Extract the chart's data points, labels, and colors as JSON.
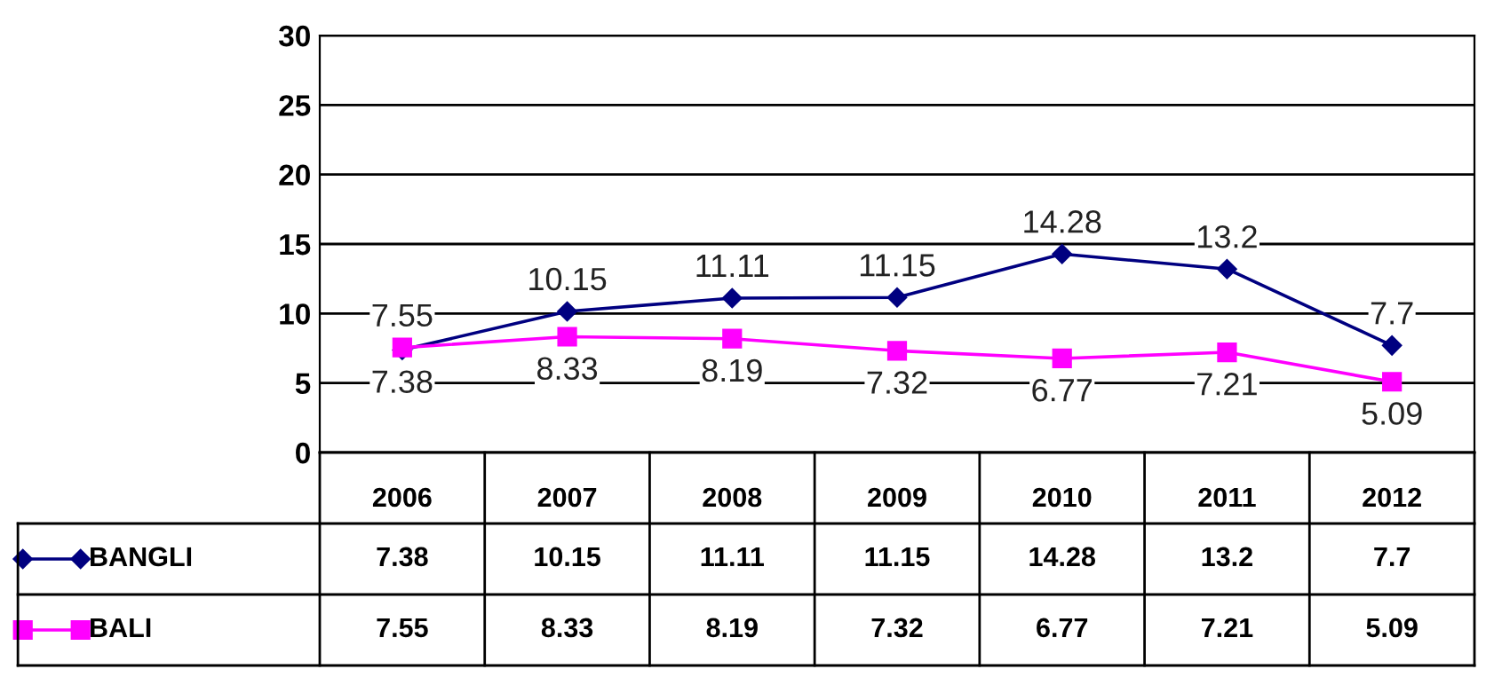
{
  "chart_data": {
    "type": "line",
    "categories": [
      "2006",
      "2007",
      "2008",
      "2009",
      "2010",
      "2011",
      "2012"
    ],
    "series": [
      {
        "name": "BANGLI",
        "color": "#000080",
        "marker": "diamond",
        "values": [
          7.38,
          10.15,
          11.11,
          11.15,
          14.28,
          13.2,
          7.7
        ],
        "value_labels": [
          "7.38",
          "10.15",
          "11.11",
          "11.15",
          "14.28",
          "13.2",
          "7.7"
        ]
      },
      {
        "name": "BALI",
        "color": "#ff00ff",
        "marker": "square",
        "values": [
          7.55,
          8.33,
          8.19,
          7.32,
          6.77,
          7.21,
          5.09
        ],
        "value_labels": [
          "7.55",
          "8.33",
          "8.19",
          "7.32",
          "6.77",
          "7.21",
          "5.09"
        ]
      }
    ],
    "annotations": [
      {
        "text": "7.38",
        "x": "2006",
        "y": 7.38
      },
      {
        "text": "10.15",
        "x": "2007",
        "y": 10.15
      },
      {
        "text": "11.11",
        "x": "2008",
        "y": 11.11
      },
      {
        "text": "11.15",
        "x": "2009",
        "y": 11.15
      },
      {
        "text": "14.28",
        "x": "2010",
        "y": 14.28
      },
      {
        "text": "13.2",
        "x": "2011",
        "y": 13.2
      },
      {
        "text": "7.7",
        "x": "2012",
        "y": 7.7
      },
      {
        "text": "7.55",
        "x": "2006",
        "y": 7.55
      },
      {
        "text": "8.33",
        "x": "2007",
        "y": 8.33
      },
      {
        "text": "8.19",
        "x": "2008",
        "y": 8.19
      },
      {
        "text": "7.32",
        "x": "2009",
        "y": 7.32
      },
      {
        "text": "6.77",
        "x": "2010",
        "y": 6.77
      },
      {
        "text": "7.21",
        "x": "2011",
        "y": 7.21
      },
      {
        "text": "5.09",
        "x": "2012",
        "y": 5.09
      }
    ],
    "ylim": [
      0,
      30
    ],
    "yticks": [
      0,
      5,
      10,
      15,
      20,
      25,
      30
    ],
    "grid": "y",
    "legend": "bottom",
    "line_style": "solid"
  }
}
